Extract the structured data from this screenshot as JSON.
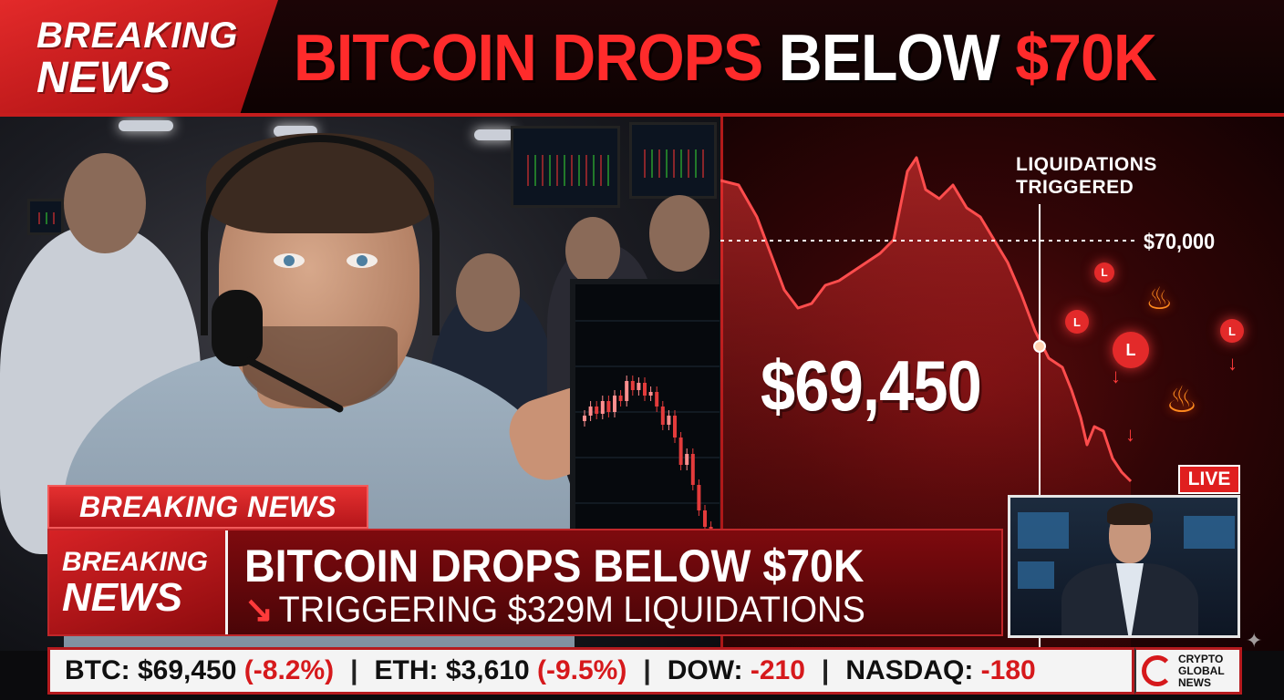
{
  "header": {
    "badge_line1": "BREAKING",
    "badge_line2": "NEWS",
    "headline_red": "BITCOIN DROPS",
    "headline_white": "BELOW",
    "headline_red2": "$70K"
  },
  "chart": {
    "annotation": "LIQUIDATIONS TRIGGERED",
    "annotation_line1": "LIQUIDATIONS",
    "annotation_line2": "TRIGGERED",
    "reference_level": "$70,000",
    "current_price": "$69,450",
    "liquidation_marker": "L",
    "accent_color": "#e32a2a"
  },
  "live_inset": {
    "badge": "LIVE"
  },
  "lower_third": {
    "tag": "BREAKING NEWS",
    "badge_line1": "BREAKING",
    "badge_line2": "NEWS",
    "line1": "BITCOIN DROPS BELOW $70K",
    "line2": "TRIGGERING $329M LIQUIDATIONS"
  },
  "ticker": {
    "items": [
      {
        "label": "BTC: $69,450",
        "change": "(-8.2%)"
      },
      {
        "label": "ETH: $3,610",
        "change": "(-9.5%)"
      },
      {
        "label": "DOW:",
        "change": "-210"
      },
      {
        "label": "NASDAQ:",
        "change": "-180"
      }
    ],
    "separator": "|"
  },
  "logo": {
    "line1": "CRYPTO",
    "line2": "GLOBAL",
    "line3": "NEWS"
  },
  "icons": {
    "flame": "fire-icon",
    "arrow": "down-arrow-icon",
    "trend": "trend-down-icon",
    "sparkle": "sparkle-icon"
  }
}
